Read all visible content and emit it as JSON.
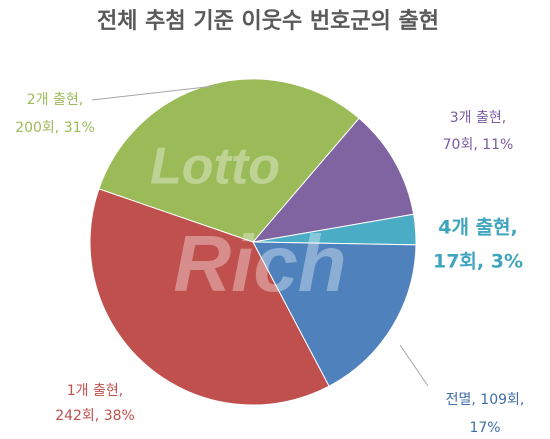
{
  "chart_data": {
    "type": "pie",
    "title": "전체 추첨 기준 이웃수 번호군의 출현",
    "categories": [
      "2개 출현,",
      "3개 출현,",
      "4개 출현,",
      "전멸, 109회,",
      "1개 출현,"
    ],
    "values": [
      31,
      11,
      3,
      17,
      38
    ],
    "value_labels": [
      "200회, 31%",
      "70회, 11%",
      "17회, 3%",
      "17%",
      "242회, 38%"
    ],
    "colors": [
      "#9bbb59",
      "#8064a2",
      "#4bacc6",
      "#4f81bd",
      "#c0504d"
    ],
    "watermark": [
      "Lotto",
      "Rich"
    ]
  }
}
